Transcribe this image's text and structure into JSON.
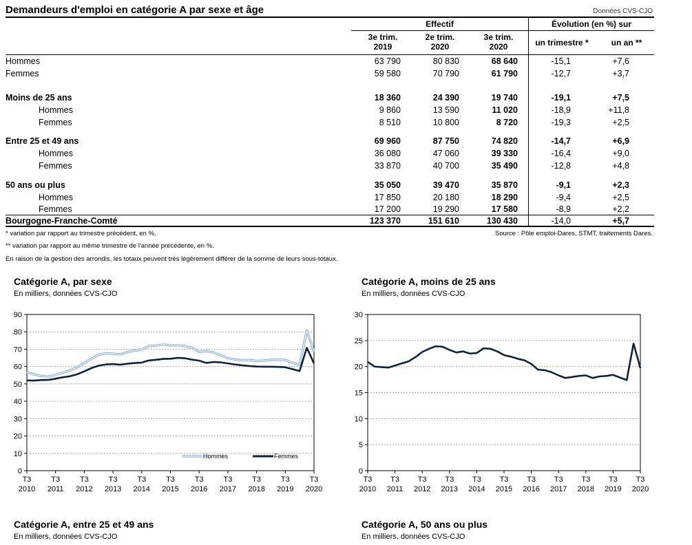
{
  "title": "Demandeurs d'emploi en catégorie A par sexe et âge",
  "source_top": "Données CVS-CJO",
  "table": {
    "header_effectif": "Effectif",
    "header_evolution": "Évolution (en %) sur",
    "col_q1": [
      "3e trim.",
      "2019"
    ],
    "col_q2": [
      "2e trim.",
      "2020"
    ],
    "col_q3": [
      "3e trim.",
      "2020"
    ],
    "col_trim": "un trimestre *",
    "col_an": "un an **",
    "rows": [
      {
        "label": "Hommes",
        "v1": "63 790",
        "v2": "80 830",
        "v3": "68 640",
        "t": "-15,1",
        "a": "+7,6",
        "bold": false,
        "indent": false
      },
      {
        "label": "Femmes",
        "v1": "59 580",
        "v2": "70 790",
        "v3": "61 790",
        "t": "-12,7",
        "a": "+3,7",
        "bold": false,
        "indent": false
      },
      {
        "label": "Moins de 25 ans",
        "v1": "18 360",
        "v2": "24 390",
        "v3": "19 740",
        "t": "-19,1",
        "a": "+7,5",
        "bold": true,
        "indent": false
      },
      {
        "label": "Hommes",
        "v1": "9 860",
        "v2": "13 590",
        "v3": "11 020",
        "t": "-18,9",
        "a": "+11,8",
        "bold": false,
        "indent": true
      },
      {
        "label": "Femmes",
        "v1": "8 510",
        "v2": "10 800",
        "v3": "8 720",
        "t": "-19,3",
        "a": "+2,5",
        "bold": false,
        "indent": true
      },
      {
        "label": "Entre 25 et 49 ans",
        "v1": "69 960",
        "v2": "87 750",
        "v3": "74 820",
        "t": "-14,7",
        "a": "+6,9",
        "bold": true,
        "indent": false
      },
      {
        "label": "Hommes",
        "v1": "36 080",
        "v2": "47 060",
        "v3": "39 330",
        "t": "-16,4",
        "a": "+9,0",
        "bold": false,
        "indent": true
      },
      {
        "label": "Femmes",
        "v1": "33 870",
        "v2": "40 700",
        "v3": "35 490",
        "t": "-12,8",
        "a": "+4,8",
        "bold": false,
        "indent": true
      },
      {
        "label": "50 ans ou plus",
        "v1": "35 050",
        "v2": "39 470",
        "v3": "35 870",
        "t": "-9,1",
        "a": "+2,3",
        "bold": true,
        "indent": false
      },
      {
        "label": "Hommes",
        "v1": "17 850",
        "v2": "20 180",
        "v3": "18 290",
        "t": "-9,4",
        "a": "+2,5",
        "bold": false,
        "indent": true
      },
      {
        "label": "Femmes",
        "v1": "17 200",
        "v2": "19 290",
        "v3": "17 580",
        "t": "-8,9",
        "a": "+2,2",
        "bold": false,
        "indent": true
      },
      {
        "label": "Bourgogne-Franche-Comté",
        "v1": "123 370",
        "v2": "151 610",
        "v3": "130 430",
        "t": "-14,0",
        "a": "+5,7",
        "bold": false,
        "indent": false,
        "total": true
      }
    ]
  },
  "notes": {
    "n1": "* variation par rapport au trimestre précédent, en %.",
    "n2": "** variation par rapport au même trimestre de l'année précédente, en %.",
    "n3": "En raison de la gestion des arrondis, les totaux peuvent très légèrement différer de la somme de leurs sous-totaux.",
    "source": "Source : Pôle emploi-Dares, STMT, traitements Dares."
  },
  "colors": {
    "hommes": "#7aa6d9",
    "femmes": "#0f2238"
  },
  "chart_data": [
    {
      "type": "line",
      "title": "Catégorie A, par sexe",
      "subtitle": "En milliers, données CVS-CJO",
      "ylim": [
        0,
        90
      ],
      "yticks": [
        0,
        10,
        20,
        30,
        40,
        50,
        60,
        70,
        80,
        90
      ],
      "xtick_top": "T3",
      "xtick_years": [
        "2010",
        "2011",
        "2012",
        "2013",
        "2014",
        "2015",
        "2016",
        "2017",
        "2018",
        "2019",
        "2020"
      ],
      "grid": true,
      "legend": "bottom-right",
      "series": [
        {
          "name": "Hommes",
          "values": [
            56.8,
            55.5,
            54.6,
            54.2,
            55.3,
            56.5,
            57.8,
            59.5,
            62.0,
            64.5,
            66.8,
            67.6,
            67.4,
            67.1,
            68.3,
            69.2,
            69.8,
            71.8,
            72.1,
            72.6,
            72.1,
            72.2,
            71.8,
            70.8,
            68.4,
            68.9,
            68.1,
            66.5,
            64.8,
            64.1,
            63.6,
            63.8,
            63.2,
            63.4,
            63.9,
            64.0,
            63.8,
            62.2,
            61.0,
            80.8,
            68.6
          ]
        },
        {
          "name": "Femmes",
          "values": [
            52.0,
            51.9,
            52.2,
            52.3,
            53.0,
            53.8,
            54.4,
            55.5,
            57.2,
            59.1,
            60.5,
            61.2,
            61.4,
            61.1,
            61.6,
            62.0,
            62.3,
            63.5,
            63.9,
            64.4,
            64.5,
            65.0,
            64.8,
            64.0,
            63.4,
            62.1,
            62.6,
            62.4,
            61.8,
            61.2,
            60.7,
            60.3,
            60.0,
            59.9,
            59.9,
            59.8,
            59.6,
            58.5,
            57.4,
            70.8,
            61.8
          ]
        }
      ]
    },
    {
      "type": "line",
      "title": "Catégorie A, moins de 25 ans",
      "subtitle": "En milliers, données CVS-CJO",
      "ylim": [
        0,
        30
      ],
      "yticks": [
        0,
        5,
        10,
        15,
        20,
        25,
        30
      ],
      "xtick_top": "T3",
      "xtick_years": [
        "2010",
        "2011",
        "2012",
        "2013",
        "2014",
        "2015",
        "2016",
        "2017",
        "2018",
        "2019",
        "2020"
      ],
      "grid": true,
      "series": [
        {
          "values": [
            20.9,
            20.0,
            19.9,
            19.8,
            20.2,
            20.6,
            21.0,
            21.8,
            22.8,
            23.4,
            23.9,
            23.8,
            23.2,
            22.7,
            22.9,
            22.5,
            22.6,
            23.5,
            23.4,
            22.9,
            22.2,
            21.9,
            21.5,
            21.2,
            20.5,
            19.4,
            19.3,
            18.9,
            18.3,
            17.8,
            18.0,
            18.2,
            18.3,
            17.8,
            18.1,
            18.2,
            18.4,
            17.9,
            17.4,
            24.4,
            19.7
          ]
        }
      ]
    },
    {
      "title": "Catégorie A, entre 25 et 49 ans",
      "subtitle": "En milliers, données CVS-CJO"
    },
    {
      "title": "Catégorie A, 50 ans ou plus",
      "subtitle": "En milliers, données CVS-CJO"
    }
  ]
}
